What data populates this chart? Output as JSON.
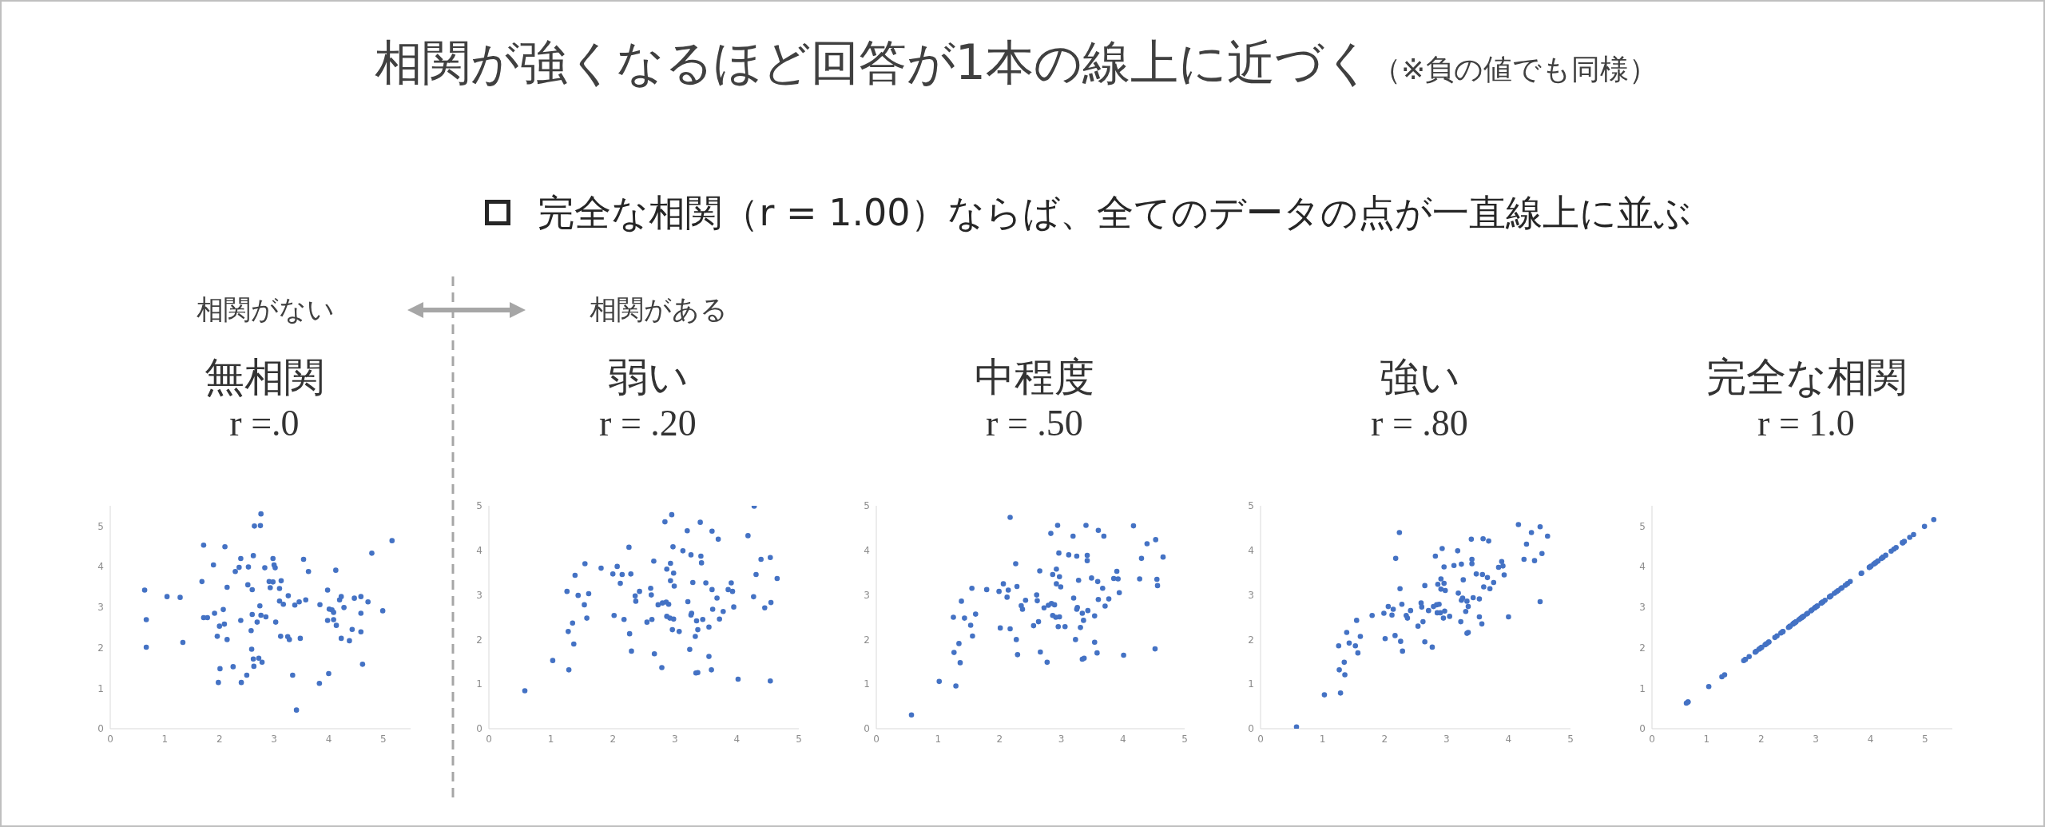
{
  "chart_data": [
    {
      "type": "other",
      "title": "相関が強くなるほど回答が1本の線上に近づく",
      "subtitle": "完全な相関（r = 1.00）ならば、全てのデータの点が一直線上に並ぶ",
      "annotations": [
        "（※負の値でも同様）",
        "相関がない",
        "相関がある"
      ]
    },
    {
      "type": "scatter",
      "title": "無相関",
      "subtitle": "r =.0",
      "color": "#4472c4",
      "marker": "circle",
      "xlim": [
        0,
        5.5
      ],
      "ylim": [
        0,
        5.5
      ],
      "xticks": [
        0,
        1,
        2,
        3,
        4,
        5
      ],
      "yticks": [
        0,
        1,
        2,
        3,
        4,
        5
      ],
      "x": [
        0.63,
        0.66,
        0.66,
        1.04,
        1.28,
        1.33,
        1.68,
        1.71,
        1.71,
        1.78,
        1.89,
        1.91,
        1.96,
        1.98,
        2.0,
        2.01,
        2.07,
        2.09,
        2.1,
        2.14,
        2.14,
        2.25,
        2.29,
        2.36,
        2.39,
        2.39,
        2.4,
        2.5,
        2.52,
        2.53,
        2.58,
        2.59,
        2.6,
        2.6,
        2.62,
        2.63,
        2.62,
        2.64,
        2.69,
        2.72,
        2.74,
        2.75,
        2.76,
        2.76,
        2.78,
        2.83,
        2.85,
        2.91,
        2.93,
        2.98,
        2.98,
        3.0,
        3.02,
        3.03,
        3.1,
        3.1,
        3.12,
        3.13,
        3.17,
        3.25,
        3.26,
        3.28,
        3.34,
        3.38,
        3.41,
        3.46,
        3.48,
        3.54,
        3.58,
        3.63,
        3.83,
        3.84,
        3.98,
        3.98,
        4.0,
        4.01,
        4.06,
        4.09,
        4.09,
        4.13,
        4.14,
        4.2,
        4.23,
        4.23,
        4.28,
        4.38,
        4.43,
        4.47,
        4.59,
        4.59,
        4.59,
        4.62,
        4.72,
        4.79,
        4.99,
        5.16
      ],
      "values": [
        3.42,
        2.69,
        2.01,
        3.26,
        3.24,
        2.13,
        3.63,
        4.53,
        2.74,
        2.74,
        4.04,
        2.85,
        2.28,
        1.14,
        2.53,
        1.48,
        2.94,
        2.58,
        4.49,
        3.49,
        2.2,
        1.53,
        3.88,
        3.98,
        4.2,
        2.67,
        1.14,
        1.32,
        3.55,
        3.99,
        2.42,
        1.96,
        3.43,
        2.82,
        4.27,
        1.54,
        1.72,
        5.0,
        2.63,
        1.74,
        3.03,
        5.01,
        5.3,
        2.8,
        1.64,
        3.97,
        2.76,
        3.63,
        3.48,
        3.62,
        4.2,
        4.04,
        3.97,
        2.63,
        3.46,
        3.15,
        2.28,
        3.65,
        3.07,
        2.27,
        3.28,
        2.2,
        1.32,
        3.05,
        0.46,
        3.13,
        2.23,
        4.18,
        3.18,
        3.88,
        1.12,
        3.06,
        3.42,
        2.67,
        1.36,
        2.95,
        2.93,
        2.87,
        2.69,
        3.91,
        2.55,
        3.18,
        3.26,
        2.23,
        2.99,
        2.17,
        2.45,
        3.22,
        2.39,
        3.26,
        2.85,
        1.59,
        3.13,
        4.33,
        2.91,
        4.64
      ]
    },
    {
      "type": "scatter",
      "title": "弱い",
      "subtitle": "r = .20",
      "color": "#4472c4",
      "marker": "circle",
      "xlim": [
        0,
        5
      ],
      "ylim": [
        0,
        5
      ],
      "xticks": [
        0,
        1,
        2,
        3,
        4,
        5
      ],
      "yticks": [
        0,
        1,
        2,
        3,
        4,
        5
      ],
      "x": [
        0.58,
        1.03,
        1.26,
        1.28,
        1.29,
        1.35,
        1.37,
        1.39,
        1.44,
        1.54,
        1.55,
        1.58,
        1.61,
        1.81,
        2.0,
        2.02,
        2.07,
        2.12,
        2.15,
        2.18,
        2.26,
        2.27,
        2.29,
        2.3,
        2.36,
        2.37,
        2.43,
        2.55,
        2.61,
        2.62,
        2.63,
        2.66,
        2.67,
        2.73,
        2.79,
        2.8,
        2.84,
        2.86,
        2.87,
        2.87,
        2.9,
        2.92,
        2.93,
        2.93,
        2.95,
        2.96,
        2.97,
        2.98,
        2.98,
        2.99,
        3.07,
        3.13,
        3.2,
        3.21,
        3.24,
        3.26,
        3.26,
        3.27,
        3.29,
        3.33,
        3.34,
        3.35,
        3.37,
        3.37,
        3.41,
        3.42,
        3.43,
        3.45,
        3.5,
        3.55,
        3.55,
        3.59,
        3.6,
        3.6,
        3.61,
        3.68,
        3.7,
        3.72,
        3.78,
        3.86,
        3.91,
        3.93,
        3.95,
        4.02,
        4.18,
        4.27,
        4.28,
        4.31,
        4.39,
        4.45,
        4.54,
        4.54,
        4.55,
        4.65
      ],
      "values": [
        0.85,
        1.53,
        3.08,
        2.18,
        1.32,
        2.37,
        1.9,
        3.44,
        2.99,
        2.78,
        3.7,
        2.48,
        3.03,
        3.6,
        3.47,
        2.54,
        3.64,
        3.26,
        3.46,
        2.45,
        4.07,
        2.13,
        3.47,
        1.74,
        2.98,
        2.86,
        3.08,
        2.39,
        3.15,
        3.0,
        2.45,
        3.76,
        1.68,
        2.78,
        1.37,
        2.82,
        4.64,
        2.84,
        3.58,
        2.52,
        2.79,
        2.48,
        3.32,
        3.71,
        4.8,
        2.22,
        4.08,
        3.49,
        2.46,
        3.2,
        2.18,
        3.99,
        4.44,
        2.85,
        1.78,
        2.55,
        3.9,
        2.59,
        3.28,
        2.07,
        1.25,
        2.42,
        1.26,
        2.22,
        4.63,
        3.87,
        3.72,
        2.45,
        3.27,
        2.28,
        1.62,
        1.32,
        3.12,
        4.43,
        2.68,
        2.93,
        4.25,
        2.46,
        2.63,
        3.12,
        3.27,
        3.08,
        2.73,
        1.11,
        4.33,
        2.96,
        4.99,
        3.46,
        3.8,
        2.71,
        1.07,
        3.84,
        2.83,
        3.37
      ]
    },
    {
      "type": "scatter",
      "title": "中程度",
      "subtitle": "r = .50",
      "color": "#4472c4",
      "marker": "circle",
      "xlim": [
        0,
        5
      ],
      "ylim": [
        0,
        5
      ],
      "xticks": [
        0,
        1,
        2,
        3,
        4,
        5
      ],
      "yticks": [
        0,
        1,
        2,
        3,
        4,
        5
      ],
      "x": [
        0.57,
        1.02,
        1.25,
        1.26,
        1.29,
        1.34,
        1.36,
        1.38,
        1.43,
        1.53,
        1.55,
        1.56,
        1.61,
        1.79,
        1.99,
        2.01,
        2.06,
        2.12,
        2.14,
        2.17,
        2.17,
        2.26,
        2.27,
        2.28,
        2.29,
        2.35,
        2.37,
        2.42,
        2.55,
        2.6,
        2.61,
        2.63,
        2.65,
        2.66,
        2.72,
        2.77,
        2.79,
        2.83,
        2.84,
        2.86,
        2.86,
        2.89,
        2.91,
        2.92,
        2.92,
        2.94,
        2.95,
        2.96,
        2.97,
        2.97,
        2.99,
        3.06,
        3.12,
        3.19,
        3.2,
        3.23,
        3.25,
        3.25,
        3.26,
        3.28,
        3.31,
        3.34,
        3.34,
        3.36,
        3.37,
        3.4,
        3.42,
        3.42,
        3.43,
        3.49,
        3.54,
        3.54,
        3.58,
        3.59,
        3.6,
        3.6,
        3.67,
        3.69,
        3.71,
        3.77,
        3.85,
        3.9,
        3.92,
        3.94,
        4.01,
        4.17,
        4.27,
        4.3,
        4.39,
        4.52,
        4.53,
        4.55,
        4.56,
        4.65
      ],
      "values": [
        0.31,
        1.06,
        2.5,
        1.71,
        0.96,
        1.91,
        1.48,
        2.86,
        2.48,
        2.32,
        3.15,
        2.08,
        2.57,
        3.12,
        3.08,
        2.26,
        3.25,
        2.95,
        3.11,
        2.24,
        4.74,
        3.7,
        2.0,
        3.19,
        1.66,
        2.76,
        2.68,
        2.88,
        2.31,
        3.0,
        2.87,
        2.4,
        3.54,
        1.72,
        2.71,
        1.49,
        2.77,
        4.38,
        2.81,
        3.46,
        2.54,
        2.78,
        2.5,
        3.25,
        3.58,
        4.56,
        2.29,
        3.94,
        3.41,
        2.51,
        3.18,
        2.29,
        3.9,
        4.32,
        2.93,
        2.0,
        2.68,
        3.87,
        2.72,
        3.33,
        2.27,
        2.59,
        1.56,
        2.43,
        1.58,
        4.56,
        3.89,
        3.77,
        2.65,
        3.38,
        2.53,
        1.94,
        1.7,
        3.3,
        4.45,
        2.9,
        3.15,
        4.32,
        2.75,
        2.91,
        3.37,
        3.53,
        3.36,
        3.05,
        1.65,
        4.55,
        3.36,
        3.82,
        4.15,
        1.79,
        4.24,
        3.35,
        3.21,
        3.85
      ]
    },
    {
      "type": "scatter",
      "title": "強い",
      "subtitle": "r = .80",
      "color": "#4472c4",
      "marker": "circle",
      "xlim": [
        0,
        5
      ],
      "ylim": [
        0,
        5
      ],
      "xticks": [
        0,
        1,
        2,
        3,
        4,
        5
      ],
      "yticks": [
        0,
        1,
        2,
        3,
        4,
        5
      ],
      "x": [
        0.58,
        1.03,
        1.26,
        1.27,
        1.29,
        1.35,
        1.36,
        1.39,
        1.43,
        1.53,
        1.55,
        1.57,
        1.61,
        1.8,
        1.99,
        2.01,
        2.06,
        2.12,
        2.14,
        2.17,
        2.18,
        2.24,
        2.25,
        2.26,
        2.28,
        2.29,
        2.35,
        2.37,
        2.42,
        2.54,
        2.59,
        2.6,
        2.62,
        2.65,
        2.65,
        2.71,
        2.77,
        2.79,
        2.82,
        2.84,
        2.86,
        2.85,
        2.88,
        2.9,
        2.91,
        2.91,
        2.93,
        2.95,
        2.96,
        2.96,
        2.97,
        2.98,
        3.05,
        3.12,
        3.18,
        3.19,
        3.23,
        3.24,
        3.24,
        3.26,
        3.27,
        3.31,
        3.33,
        3.33,
        3.35,
        3.35,
        3.4,
        3.41,
        3.41,
        3.43,
        3.48,
        3.53,
        3.53,
        3.57,
        3.58,
        3.59,
        3.6,
        3.66,
        3.68,
        3.7,
        3.76,
        3.84,
        3.89,
        3.91,
        3.93,
        4.0,
        4.16,
        4.25,
        4.29,
        4.37,
        4.42,
        4.51,
        4.51,
        4.54,
        4.63
      ],
      "values": [
        0.04,
        0.76,
        1.86,
        1.32,
        0.8,
        1.49,
        1.21,
        2.16,
        1.92,
        1.86,
        2.43,
        1.7,
        2.07,
        2.54,
        2.59,
        2.02,
        2.74,
        2.55,
        2.68,
        2.09,
        3.82,
        4.4,
        3.14,
        1.96,
        2.79,
        1.74,
        2.54,
        2.48,
        2.65,
        2.3,
        2.82,
        2.73,
        2.4,
        3.21,
        1.95,
        2.65,
        1.83,
        2.74,
        3.87,
        2.78,
        3.24,
        2.6,
        2.79,
        2.6,
        3.36,
        3.13,
        4.04,
        2.48,
        3.63,
        3.26,
        2.64,
        3.1,
        2.52,
        3.66,
        3.99,
        3.04,
        2.4,
        2.88,
        3.69,
        2.93,
        3.34,
        2.63,
        2.86,
        2.14,
        2.16,
        2.74,
        4.25,
        3.8,
        3.7,
        2.94,
        3.47,
        2.91,
        2.51,
        2.35,
        3.46,
        4.26,
        3.18,
        3.39,
        4.21,
        3.14,
        3.28,
        3.62,
        3.75,
        3.65,
        3.45,
        2.51,
        4.58,
        3.8,
        4.14,
        4.4,
        3.77,
        4.53,
        2.85,
        3.93,
        4.32
      ]
    },
    {
      "type": "scatter",
      "title": "完全な相関",
      "subtitle": "r = 1.0",
      "color": "#4472c4",
      "marker": "circle",
      "xlim": [
        0,
        5.5
      ],
      "ylim": [
        0,
        5.5
      ],
      "xticks": [
        0,
        1,
        2,
        3,
        4,
        5
      ],
      "yticks": [
        0,
        1,
        2,
        3,
        4,
        5
      ],
      "x": [
        0.63,
        0.66,
        0.66,
        1.04,
        1.28,
        1.33,
        1.68,
        1.71,
        1.71,
        1.78,
        1.89,
        1.91,
        1.96,
        1.98,
        2.0,
        2.01,
        2.07,
        2.09,
        2.1,
        2.14,
        2.14,
        2.25,
        2.29,
        2.36,
        2.39,
        2.39,
        2.4,
        2.5,
        2.52,
        2.53,
        2.58,
        2.59,
        2.6,
        2.6,
        2.62,
        2.63,
        2.62,
        2.64,
        2.69,
        2.72,
        2.74,
        2.75,
        2.76,
        2.76,
        2.78,
        2.83,
        2.85,
        2.91,
        2.93,
        2.98,
        2.98,
        3.0,
        3.02,
        3.03,
        3.1,
        3.1,
        3.12,
        3.13,
        3.17,
        3.25,
        3.26,
        3.28,
        3.34,
        3.38,
        3.41,
        3.46,
        3.48,
        3.54,
        3.58,
        3.63,
        3.83,
        3.84,
        3.98,
        3.98,
        4.0,
        4.01,
        4.06,
        4.09,
        4.09,
        4.13,
        4.14,
        4.2,
        4.23,
        4.23,
        4.28,
        4.38,
        4.43,
        4.47,
        4.59,
        4.59,
        4.59,
        4.62,
        4.72,
        4.79,
        4.99,
        5.16
      ],
      "values": [
        0.63,
        0.66,
        0.66,
        1.04,
        1.28,
        1.33,
        1.68,
        1.71,
        1.71,
        1.78,
        1.89,
        1.91,
        1.96,
        1.98,
        2.0,
        2.01,
        2.07,
        2.09,
        2.1,
        2.14,
        2.14,
        2.25,
        2.29,
        2.36,
        2.39,
        2.39,
        2.4,
        2.5,
        2.52,
        2.53,
        2.58,
        2.59,
        2.6,
        2.6,
        2.62,
        2.63,
        2.62,
        2.64,
        2.69,
        2.72,
        2.74,
        2.75,
        2.76,
        2.76,
        2.78,
        2.83,
        2.85,
        2.91,
        2.93,
        2.98,
        2.98,
        3.0,
        3.02,
        3.03,
        3.1,
        3.1,
        3.12,
        3.13,
        3.17,
        3.25,
        3.26,
        3.28,
        3.34,
        3.38,
        3.41,
        3.46,
        3.48,
        3.54,
        3.58,
        3.63,
        3.83,
        3.84,
        3.98,
        3.98,
        4.0,
        4.01,
        4.06,
        4.09,
        4.09,
        4.13,
        4.14,
        4.2,
        4.23,
        4.23,
        4.28,
        4.38,
        4.43,
        4.47,
        4.59,
        4.59,
        4.59,
        4.62,
        4.72,
        4.79,
        4.99,
        5.16
      ]
    }
  ]
}
